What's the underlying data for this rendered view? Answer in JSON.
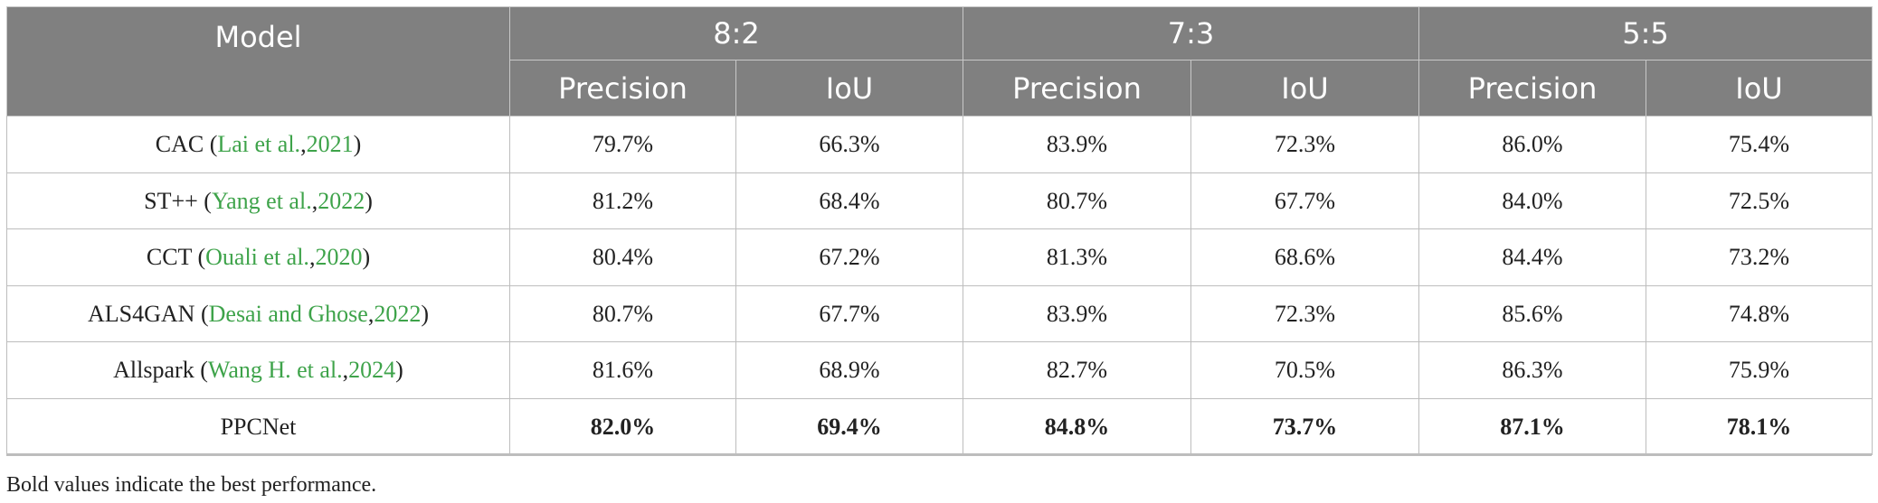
{
  "table": {
    "header": {
      "model": "Model",
      "groups": [
        "8:2",
        "7:3",
        "5:5"
      ],
      "subheaders": [
        "Precision",
        "IoU",
        "Precision",
        "IoU",
        "Precision",
        "IoU"
      ]
    },
    "rows": [
      {
        "model": [
          "CAC (",
          "Lai et al.",
          ", ",
          "2021",
          ")"
        ],
        "cells": [
          "79.7%",
          "66.3%",
          "83.9%",
          "72.3%",
          "86.0%",
          "75.4%"
        ],
        "bold": false
      },
      {
        "model": [
          "ST++ (",
          "Yang et al.",
          ", ",
          "2022",
          ")"
        ],
        "cells": [
          "81.2%",
          "68.4%",
          "80.7%",
          "67.7%",
          "84.0%",
          "72.5%"
        ],
        "bold": false
      },
      {
        "model": [
          "CCT (",
          "Ouali et al.",
          ", ",
          "2020",
          ")"
        ],
        "cells": [
          "80.4%",
          "67.2%",
          "81.3%",
          "68.6%",
          "84.4%",
          "73.2%"
        ],
        "bold": false
      },
      {
        "model": [
          "ALS4GAN (",
          "Desai and Ghose",
          ", ",
          "2022",
          ")"
        ],
        "cells": [
          "80.7%",
          "67.7%",
          "83.9%",
          "72.3%",
          "85.6%",
          "74.8%"
        ],
        "bold": false
      },
      {
        "model": [
          "Allspark (",
          "Wang H. et al.",
          ", ",
          "2024",
          ")"
        ],
        "cells": [
          "81.6%",
          "68.9%",
          "82.7%",
          "70.5%",
          "86.3%",
          "75.9%"
        ],
        "bold": false
      },
      {
        "model": [
          "PPCNet"
        ],
        "cells": [
          "82.0%",
          "69.4%",
          "84.8%",
          "73.7%",
          "87.1%",
          "78.1%"
        ],
        "bold": true
      }
    ],
    "footnote": "Bold values indicate the best performance."
  }
}
